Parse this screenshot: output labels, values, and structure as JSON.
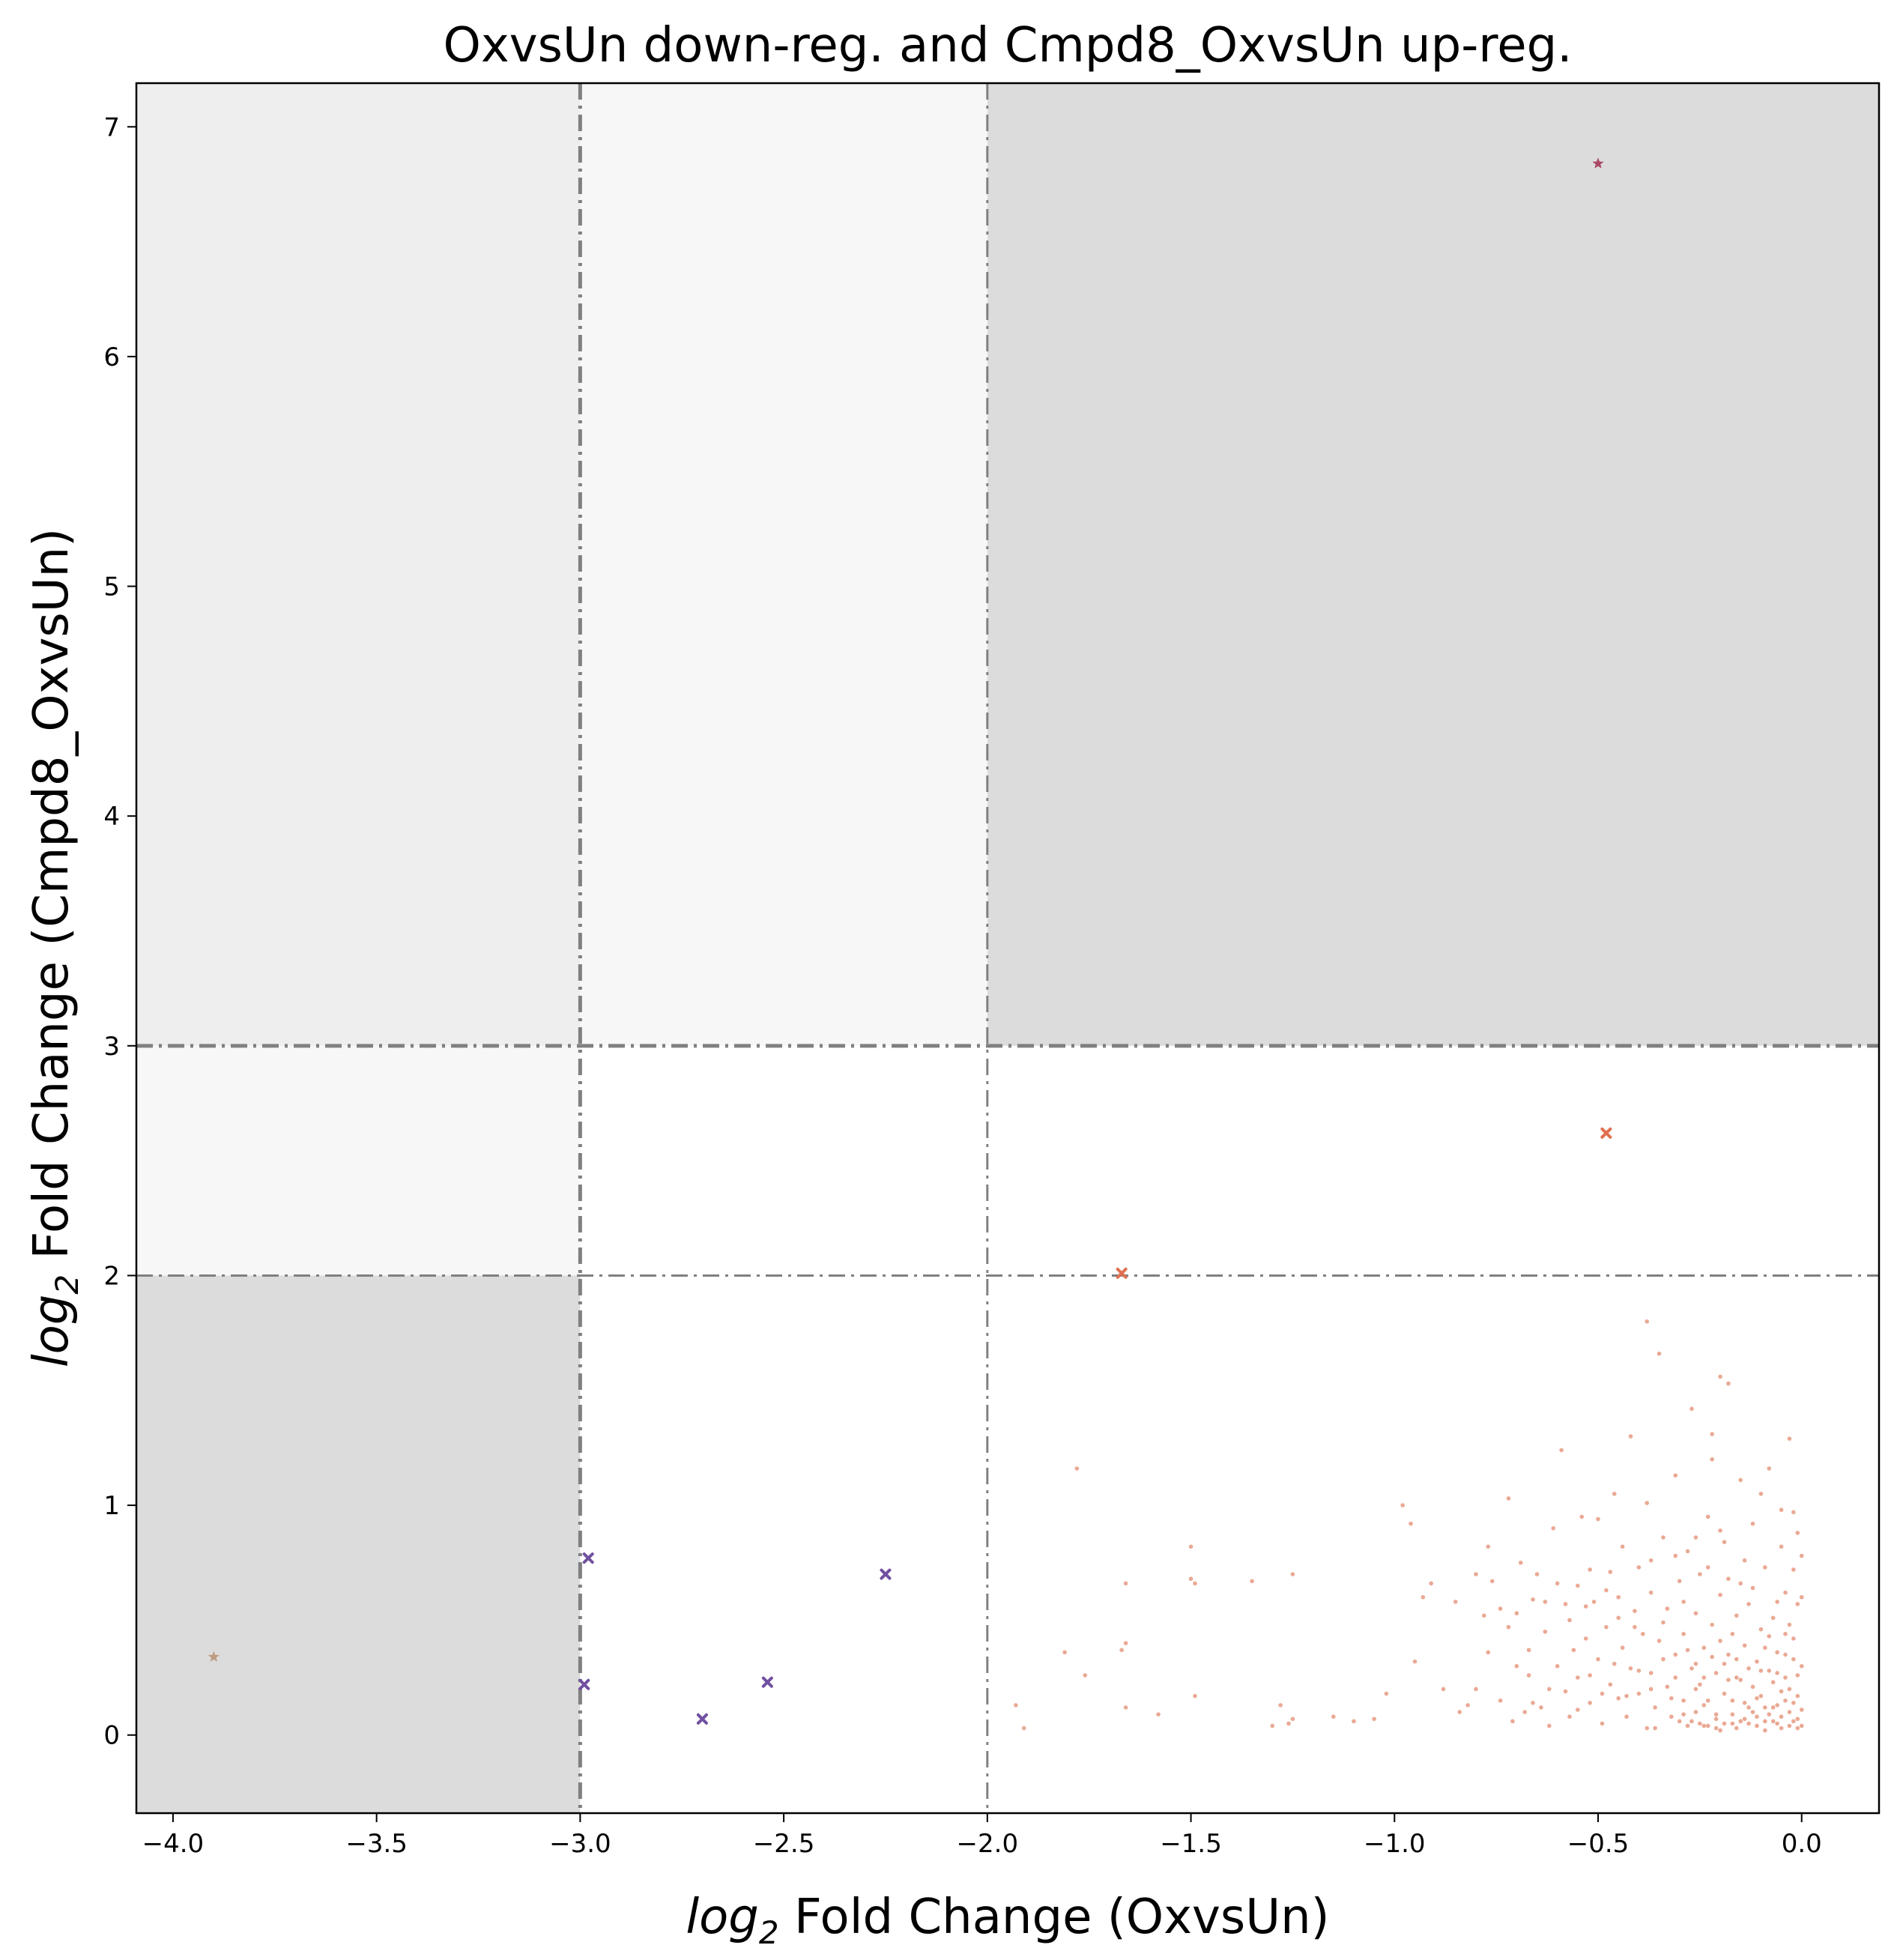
{
  "chart_data": {
    "type": "scatter",
    "title": "OxvsUn down-reg. and Cmpd8_OxvsUn up-reg.",
    "xlabel": {
      "italic": "log",
      "sub": "2",
      "rest": " Fold Change (OxvsUn)"
    },
    "ylabel": {
      "italic": "log",
      "sub": "2",
      "rest": " Fold Change (Cmpd8_OxvsUn)"
    },
    "xlim": [
      -4.09,
      0.19
    ],
    "ylim": [
      -0.34,
      7.19
    ],
    "xticks": [
      -4.0,
      -3.5,
      -3.0,
      -2.5,
      -2.0,
      -1.5,
      -1.0,
      -0.5,
      0.0
    ],
    "xtick_labels": [
      "−4.0",
      "−3.5",
      "−3.0",
      "−2.5",
      "−2.0",
      "−1.5",
      "−1.0",
      "−0.5",
      "0.0"
    ],
    "yticks": [
      0,
      1,
      2,
      3,
      4,
      5,
      6,
      7
    ],
    "ytick_labels": [
      "0",
      "1",
      "2",
      "3",
      "4",
      "5",
      "6",
      "7"
    ],
    "grid": false,
    "legend": "none",
    "thresholds": {
      "x": [
        -3,
        -2
      ],
      "y": [
        2,
        3
      ]
    },
    "shaded_regions": [
      {
        "x": [
          -4.09,
          -3
        ],
        "y": [
          2,
          7.19
        ],
        "color": "#eeeeee"
      },
      {
        "x": [
          -3,
          -2
        ],
        "y": [
          3,
          7.19
        ],
        "color": "#f7f7f7"
      },
      {
        "x": [
          -4.09,
          -3
        ],
        "y": [
          3,
          7.19
        ],
        "color": "#eeeeee"
      },
      {
        "x": [
          -4.09,
          -3
        ],
        "y": [
          -0.34,
          2
        ],
        "color": "#dcdcdc"
      },
      {
        "x": [
          -2,
          0.19
        ],
        "y": [
          3,
          7.19
        ],
        "color": "#dcdcdc"
      },
      {
        "x": [
          -4.09,
          -3
        ],
        "y": [
          2,
          3
        ],
        "color": "#f7f7f7"
      }
    ],
    "threshold_color": "#808080",
    "series": [
      {
        "marker": "star",
        "color": "#a03050",
        "points": [
          [
            -0.5,
            6.84
          ]
        ]
      },
      {
        "marker": "star",
        "color": "#b89070",
        "points": [
          [
            -3.9,
            0.34
          ]
        ]
      },
      {
        "marker": "x",
        "color": "#e07050",
        "points": [
          [
            -0.48,
            2.62
          ],
          [
            -1.67,
            2.01
          ]
        ]
      },
      {
        "marker": "x",
        "color": "#7050a0",
        "points": [
          [
            -2.98,
            0.77
          ],
          [
            -2.99,
            0.22
          ],
          [
            -2.7,
            0.07
          ],
          [
            -2.54,
            0.23
          ],
          [
            -2.25,
            0.7
          ]
        ]
      },
      {
        "marker": "dot",
        "color": "#d8633c",
        "points": [
          [
            -1.93,
            0.13
          ],
          [
            -1.91,
            0.03
          ],
          [
            -1.81,
            0.36
          ],
          [
            -1.78,
            1.16
          ],
          [
            -1.76,
            0.26
          ],
          [
            -1.66,
            0.66
          ],
          [
            -1.66,
            0.4
          ],
          [
            -1.67,
            0.37
          ],
          [
            -1.66,
            0.12
          ],
          [
            -1.5,
            0.82
          ],
          [
            -1.49,
            0.66
          ],
          [
            -1.5,
            0.68
          ],
          [
            -1.49,
            0.17
          ],
          [
            -1.35,
            0.67
          ],
          [
            -1.28,
            0.13
          ],
          [
            -1.25,
            0.7
          ],
          [
            -1.26,
            0.05
          ],
          [
            -1.25,
            0.07
          ],
          [
            -1.15,
            0.08
          ],
          [
            -1.05,
            0.07
          ],
          [
            -0.98,
            1.0
          ],
          [
            -0.96,
            0.92
          ],
          [
            -0.95,
            0.32
          ],
          [
            -0.93,
            0.6
          ],
          [
            -0.91,
            0.66
          ],
          [
            -0.85,
            0.58
          ],
          [
            -0.84,
            0.1
          ],
          [
            -0.8,
            0.7
          ],
          [
            -0.8,
            0.2
          ],
          [
            -0.78,
            0.52
          ],
          [
            -0.77,
            0.82
          ],
          [
            -0.76,
            0.67
          ],
          [
            -0.74,
            0.55
          ],
          [
            -0.72,
            1.03
          ],
          [
            -0.71,
            0.06
          ],
          [
            -0.7,
            0.53
          ],
          [
            -0.69,
            0.75
          ],
          [
            -0.68,
            0.1
          ],
          [
            -0.67,
            0.37
          ],
          [
            -0.66,
            0.59
          ],
          [
            -0.65,
            0.7
          ],
          [
            -0.64,
            0.12
          ],
          [
            -0.63,
            0.45
          ],
          [
            -0.62,
            0.2
          ],
          [
            -0.61,
            0.9
          ],
          [
            -0.6,
            0.66
          ],
          [
            -0.6,
            0.3
          ],
          [
            -0.59,
            1.24
          ],
          [
            -0.58,
            0.57
          ],
          [
            -0.57,
            0.08
          ],
          [
            -0.56,
            0.37
          ],
          [
            -0.55,
            0.65
          ],
          [
            -0.55,
            0.25
          ],
          [
            -0.54,
            0.95
          ],
          [
            -0.53,
            0.42
          ],
          [
            -0.52,
            0.14
          ],
          [
            -0.52,
            0.72
          ],
          [
            -0.51,
            0.58
          ],
          [
            -0.5,
            0.94
          ],
          [
            -0.5,
            0.33
          ],
          [
            -0.49,
            0.05
          ],
          [
            -0.48,
            0.47
          ],
          [
            -0.47,
            0.22
          ],
          [
            -0.47,
            0.71
          ],
          [
            -0.46,
            1.05
          ],
          [
            -0.45,
            0.16
          ],
          [
            -0.45,
            0.6
          ],
          [
            -0.44,
            0.38
          ],
          [
            -0.44,
            0.82
          ],
          [
            -0.43,
            0.08
          ],
          [
            -0.42,
            0.29
          ],
          [
            -0.42,
            1.3
          ],
          [
            -0.41,
            0.54
          ],
          [
            -0.4,
            0.18
          ],
          [
            -0.4,
            0.73
          ],
          [
            -0.39,
            0.44
          ],
          [
            -0.38,
            0.03
          ],
          [
            -0.38,
            1.01
          ],
          [
            -0.37,
            0.27
          ],
          [
            -0.37,
            0.62
          ],
          [
            -0.36,
            0.12
          ],
          [
            -0.35,
            0.41
          ],
          [
            -0.35,
            1.66
          ],
          [
            -0.34,
            0.86
          ],
          [
            -0.33,
            0.21
          ],
          [
            -0.33,
            0.55
          ],
          [
            -0.32,
            0.08
          ],
          [
            -0.31,
            0.35
          ],
          [
            -0.31,
            1.13
          ],
          [
            -0.3,
            0.67
          ],
          [
            -0.29,
            0.15
          ],
          [
            -0.29,
            0.44
          ],
          [
            -0.28,
            0.04
          ],
          [
            -0.28,
            0.8
          ],
          [
            -0.27,
            0.29
          ],
          [
            -0.27,
            1.42
          ],
          [
            -0.26,
            0.53
          ],
          [
            -0.26,
            0.1
          ],
          [
            -0.25,
            0.22
          ],
          [
            -0.25,
            0.7
          ],
          [
            -0.24,
            0.38
          ],
          [
            -0.24,
            0.04
          ],
          [
            -0.23,
            0.95
          ],
          [
            -0.23,
            0.15
          ],
          [
            -0.22,
            0.48
          ],
          [
            -0.22,
            1.31
          ],
          [
            -0.21,
            0.07
          ],
          [
            -0.21,
            0.27
          ],
          [
            -0.2,
            0.61
          ],
          [
            -0.2,
            0.02
          ],
          [
            -0.19,
            0.18
          ],
          [
            -0.19,
            0.84
          ],
          [
            -0.18,
            0.35
          ],
          [
            -0.18,
            1.53
          ],
          [
            -0.17,
            0.09
          ],
          [
            -0.17,
            0.44
          ],
          [
            -0.16,
            0.25
          ],
          [
            -0.16,
            0.03
          ],
          [
            -0.15,
            0.66
          ],
          [
            -0.15,
            1.11
          ],
          [
            -0.14,
            0.14
          ],
          [
            -0.14,
            0.39
          ],
          [
            -0.13,
            0.05
          ],
          [
            -0.13,
            0.57
          ],
          [
            -0.12,
            0.21
          ],
          [
            -0.12,
            0.92
          ],
          [
            -0.11,
            0.32
          ],
          [
            -0.11,
            0.08
          ],
          [
            -0.1,
            0.46
          ],
          [
            -0.1,
            0.17
          ],
          [
            -0.09,
            0.73
          ],
          [
            -0.09,
            0.02
          ],
          [
            -0.08,
            0.28
          ],
          [
            -0.08,
            1.16
          ],
          [
            -0.07,
            0.12
          ],
          [
            -0.07,
            0.51
          ],
          [
            -0.06,
            0.36
          ],
          [
            -0.06,
            0.05
          ],
          [
            -0.05,
            0.82
          ],
          [
            -0.05,
            0.19
          ],
          [
            -0.04,
            0.25
          ],
          [
            -0.04,
            0.62
          ],
          [
            -0.03,
            0.04
          ],
          [
            -0.03,
            1.29
          ],
          [
            -0.02,
            0.14
          ],
          [
            -0.02,
            0.42
          ],
          [
            -0.01,
            0.07
          ],
          [
            -0.01,
            0.88
          ],
          [
            0.0,
            0.3
          ],
          [
            0.0,
            0.11
          ],
          [
            -0.38,
            1.8
          ],
          [
            -0.2,
            1.56
          ],
          [
            -0.22,
            1.2
          ],
          [
            -0.1,
            1.05
          ],
          [
            -0.05,
            0.98
          ],
          [
            -0.3,
            0.06
          ],
          [
            -0.26,
            0.31
          ],
          [
            -0.24,
            0.13
          ],
          [
            -0.21,
            0.09
          ],
          [
            -0.19,
            0.31
          ],
          [
            -0.17,
            0.05
          ],
          [
            -0.15,
            0.24
          ],
          [
            -0.14,
            0.07
          ],
          [
            -0.12,
            0.1
          ],
          [
            -0.11,
            0.16
          ],
          [
            -0.09,
            0.06
          ],
          [
            -0.08,
            0.09
          ],
          [
            -0.07,
            0.23
          ],
          [
            -0.06,
            0.13
          ],
          [
            -0.05,
            0.08
          ],
          [
            -0.04,
            0.15
          ],
          [
            -0.03,
            0.2
          ],
          [
            -0.02,
            0.06
          ],
          [
            -0.01,
            0.26
          ],
          [
            0.0,
            0.04
          ],
          [
            -0.36,
            0.03
          ],
          [
            -0.32,
            0.16
          ],
          [
            -0.29,
            0.09
          ],
          [
            -0.27,
            0.06
          ],
          [
            -0.25,
            0.05
          ],
          [
            -0.23,
            0.04
          ],
          [
            -0.21,
            0.03
          ],
          [
            -0.19,
            0.05
          ],
          [
            -0.17,
            0.15
          ],
          [
            -0.15,
            0.06
          ],
          [
            -0.13,
            0.12
          ],
          [
            -0.11,
            0.04
          ],
          [
            -0.09,
            0.12
          ],
          [
            -0.07,
            0.06
          ],
          [
            -0.05,
            0.03
          ],
          [
            -0.03,
            0.1
          ],
          [
            -0.01,
            0.03
          ],
          [
            -0.02,
            0.33
          ],
          [
            -0.04,
            0.35
          ],
          [
            -0.06,
            0.27
          ],
          [
            -0.08,
            0.43
          ],
          [
            -0.1,
            0.28
          ],
          [
            -0.13,
            0.29
          ],
          [
            -0.16,
            0.33
          ],
          [
            -0.18,
            0.24
          ],
          [
            -0.2,
            0.41
          ],
          [
            -0.22,
            0.34
          ],
          [
            -0.24,
            0.25
          ],
          [
            -0.26,
            0.2
          ],
          [
            -0.28,
            0.37
          ],
          [
            -0.31,
            0.25
          ],
          [
            -0.34,
            0.33
          ],
          [
            -0.37,
            0.2
          ],
          [
            -0.4,
            0.28
          ],
          [
            -0.43,
            0.17
          ],
          [
            -0.46,
            0.31
          ],
          [
            -0.49,
            0.18
          ],
          [
            -0.52,
            0.26
          ],
          [
            -0.55,
            0.11
          ],
          [
            -0.58,
            0.19
          ],
          [
            -0.62,
            0.04
          ],
          [
            -0.66,
            0.14
          ],
          [
            -0.7,
            0.3
          ],
          [
            -0.74,
            0.15
          ],
          [
            -0.82,
            0.13
          ],
          [
            -0.88,
            0.2
          ],
          [
            -1.02,
            0.18
          ],
          [
            -1.1,
            0.06
          ],
          [
            -1.3,
            0.04
          ],
          [
            -1.58,
            0.09
          ],
          [
            -0.01,
            0.57
          ],
          [
            -0.02,
            0.72
          ],
          [
            -0.03,
            0.48
          ],
          [
            -0.01,
            0.17
          ],
          [
            0.0,
            0.6
          ],
          [
            -0.02,
            0.97
          ],
          [
            0.0,
            0.78
          ],
          [
            -0.04,
            0.44
          ],
          [
            -0.06,
            0.58
          ],
          [
            -0.09,
            0.38
          ],
          [
            -0.12,
            0.64
          ],
          [
            -0.14,
            0.76
          ],
          [
            -0.16,
            0.52
          ],
          [
            -0.18,
            0.68
          ],
          [
            -0.2,
            0.89
          ],
          [
            -0.23,
            0.73
          ],
          [
            -0.26,
            0.86
          ],
          [
            -0.29,
            0.58
          ],
          [
            -0.31,
            0.78
          ],
          [
            -0.34,
            0.49
          ],
          [
            -0.37,
            0.76
          ],
          [
            -0.41,
            0.47
          ],
          [
            -0.45,
            0.51
          ],
          [
            -0.48,
            0.63
          ],
          [
            -0.53,
            0.56
          ],
          [
            -0.57,
            0.5
          ],
          [
            -0.63,
            0.58
          ],
          [
            -0.67,
            0.26
          ],
          [
            -0.72,
            0.47
          ],
          [
            -0.77,
            0.36
          ]
        ]
      }
    ]
  }
}
